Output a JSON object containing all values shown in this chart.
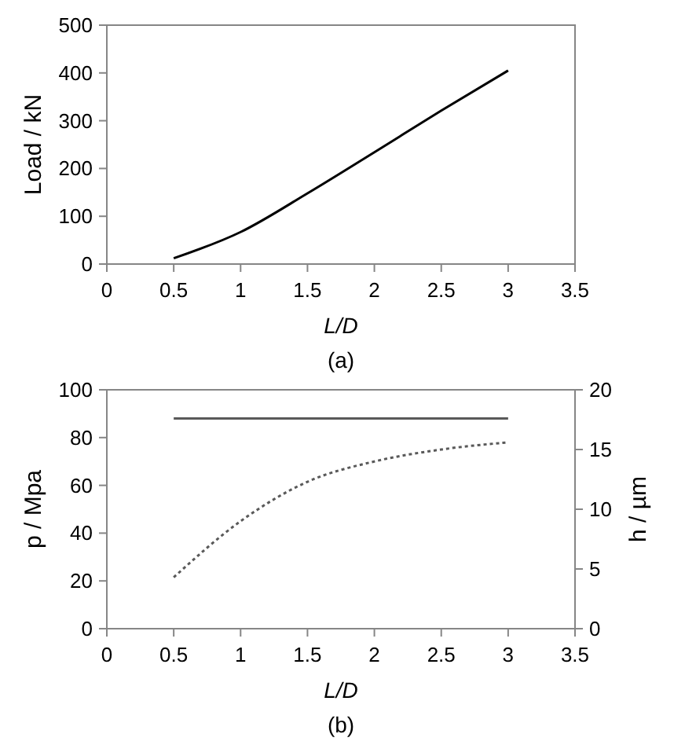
{
  "chart_data": [
    {
      "type": "line",
      "title": "(a)",
      "xlabel": "L/D",
      "ylabel": "Load / kN",
      "x": [
        0.5,
        1,
        1.5,
        2,
        2.5,
        3
      ],
      "series": [
        {
          "color": "#000000",
          "values": [
            12,
            67,
            148,
            234,
            321,
            405
          ]
        }
      ],
      "xlim": [
        0,
        3.5
      ],
      "xticks": [
        0,
        0.5,
        1,
        1.5,
        2,
        2.5,
        3,
        3.5
      ],
      "ylim": [
        0,
        500
      ],
      "yticks": [
        0,
        100,
        200,
        300,
        400,
        500
      ],
      "grid": false
    },
    {
      "type": "line",
      "title": "(b)",
      "xlabel": "L/D",
      "ylabel": "p / Mpa",
      "y2label": "h / µm",
      "x": [
        0.5,
        1,
        1.5,
        2,
        2.5,
        3
      ],
      "series": [
        {
          "color": "#595959",
          "values": [
            88,
            88,
            88,
            88,
            88,
            88
          ],
          "line_style": "solid"
        },
        {
          "color": "#595959",
          "values": [
            4.3,
            9,
            12.3,
            14,
            15,
            15.6
          ],
          "axis": "y2",
          "line_style": "dotted"
        }
      ],
      "xlim": [
        0,
        3.5
      ],
      "xticks": [
        0,
        0.5,
        1,
        1.5,
        2,
        2.5,
        3,
        3.5
      ],
      "ylim": [
        0,
        100
      ],
      "yticks": [
        0,
        20,
        40,
        60,
        80,
        100
      ],
      "y2lim": [
        0,
        20
      ],
      "y2ticks": [
        0,
        5,
        10,
        15,
        20
      ],
      "grid": false
    }
  ]
}
